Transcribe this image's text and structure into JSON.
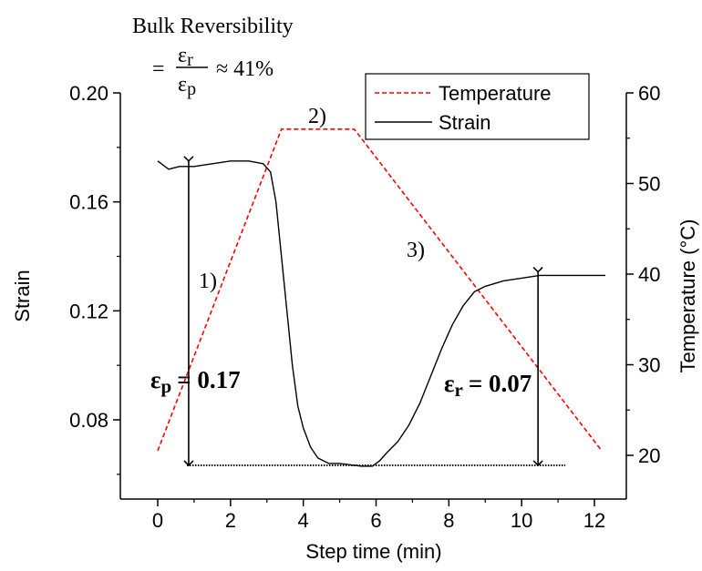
{
  "chart_data": {
    "type": "line",
    "title_lines": [
      "Bulk Reversibility",
      "= εr/εp ≈ 41%"
    ],
    "title_prefix": "=",
    "title_fraction_num": "ε",
    "title_fraction_num_sub": "r",
    "title_fraction_den": "ε",
    "title_fraction_den_sub": "p",
    "title_suffix": "≈ 41%",
    "title_head": "Bulk Reversibility",
    "xlabel": "Step time (min)",
    "ylabel_left": "Strain",
    "ylabel_right": "Temperature (°C)",
    "xlim": [
      -1,
      13.5
    ],
    "ylim_left": [
      0.04,
      0.2
    ],
    "ylim_right": [
      15,
      60
    ],
    "x_ticks": [
      "0",
      "2",
      "4",
      "6",
      "8",
      "10",
      "12"
    ],
    "y_left_ticks": [
      "0.08",
      "0.12",
      "0.16",
      "0.20"
    ],
    "y_right_ticks": [
      "20",
      "30",
      "40",
      "50",
      "60"
    ],
    "legend_position": "top-right",
    "legend": [
      {
        "label": "Temperature",
        "style": "dashed",
        "color": "#ff0000"
      },
      {
        "label": "Strain",
        "style": "solid",
        "color": "#000000"
      }
    ],
    "series": [
      {
        "name": "Temperature",
        "axis": "right",
        "color": "#ff0000",
        "dash": true,
        "x": [
          0,
          3.4,
          3.6,
          5.4,
          12.2
        ],
        "y": [
          20.5,
          56,
          56,
          56,
          20.5
        ]
      },
      {
        "name": "Strain",
        "axis": "left",
        "color": "#000000",
        "dash": false,
        "x": [
          0,
          0.3,
          0.6,
          1,
          1.5,
          2,
          2.5,
          2.9,
          3.1,
          3.25,
          3.4,
          3.55,
          3.7,
          3.85,
          4.0,
          4.2,
          4.4,
          4.7,
          5.0,
          5.3,
          5.6,
          5.9,
          6.1,
          6.3,
          6.6,
          6.9,
          7.2,
          7.5,
          7.8,
          8.1,
          8.4,
          8.7,
          9.0,
          9.5,
          10,
          10.5,
          11,
          11.5,
          12,
          12.3
        ],
        "y": [
          0.175,
          0.172,
          0.173,
          0.173,
          0.174,
          0.175,
          0.175,
          0.174,
          0.171,
          0.16,
          0.14,
          0.12,
          0.1,
          0.085,
          0.077,
          0.07,
          0.066,
          0.064,
          0.064,
          0.0635,
          0.063,
          0.063,
          0.065,
          0.068,
          0.072,
          0.078,
          0.086,
          0.096,
          0.106,
          0.115,
          0.122,
          0.127,
          0.129,
          0.131,
          0.132,
          0.133,
          0.133,
          0.133,
          0.133,
          0.133
        ]
      }
    ],
    "baseline": {
      "x": [
        0.8,
        11.2
      ],
      "y": 0.0633
    },
    "arrows": [
      {
        "x": 0.85,
        "y_top": 0.175,
        "y_bottom": 0.0633
      },
      {
        "x": 10.45,
        "y_top": 0.1343,
        "y_bottom": 0.0633
      }
    ],
    "annotations": {
      "ep_main": "ε",
      "ep_sub": "p",
      "ep_eq": "= 0.17",
      "er_main": "ε",
      "er_sub": "r",
      "er_eq": "= 0.07",
      "phase1": "1)",
      "phase2": "2)",
      "phase3": "3)"
    }
  }
}
